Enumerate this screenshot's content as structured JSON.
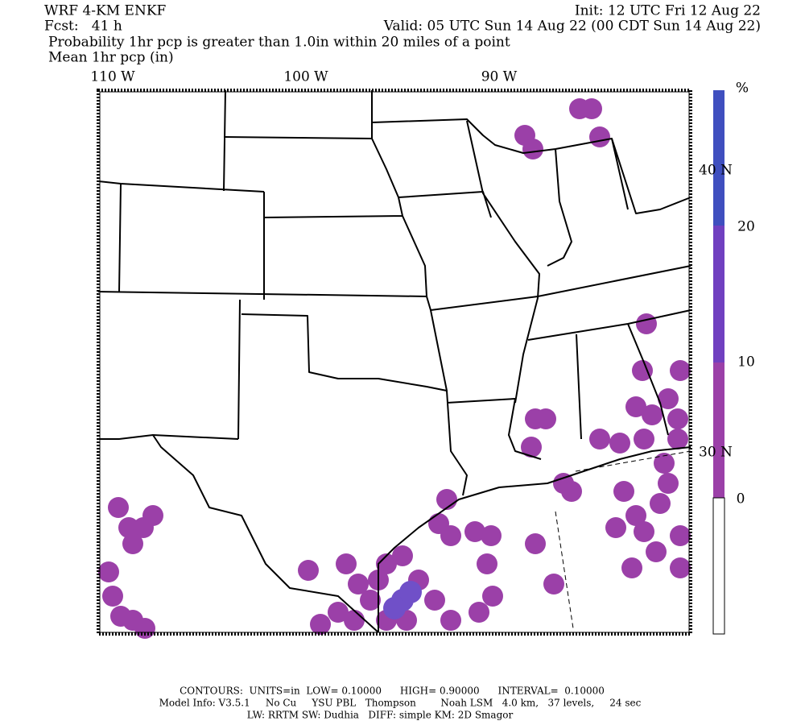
{
  "header": {
    "model": "WRF 4-KM ENKF",
    "init": "Init: 12 UTC Fri 12 Aug 22",
    "forecast": "Fcst:   41 h",
    "valid": "Valid: 05 UTC Sun 14 Aug 22 (00 CDT Sun 14 Aug 22)",
    "field1": "Probability 1hr pcp is greater than 1.0in within 20 miles of a point",
    "field2": "Mean 1hr pcp (in)"
  },
  "map": {
    "longitudes": [
      "110 W",
      "100 W",
      "90 W"
    ],
    "latitudes": [
      "40 N",
      "30 N"
    ]
  },
  "colorbar": {
    "unit": "%",
    "labels": [
      20,
      10,
      0
    ]
  },
  "footer": {
    "contours": "CONTOURS:  UNITS=in  LOW= 0.10000      HIGH= 0.90000      INTERVAL=  0.10000",
    "model_info": "Model Info: V3.5.1     No Cu     YSU PBL   Thompson        Noah LSM   4.0 km,   37 levels,     24 sec",
    "physics": "LW: RRTM SW: Dudhia   DIFF: simple KM: 2D Smagor"
  }
}
